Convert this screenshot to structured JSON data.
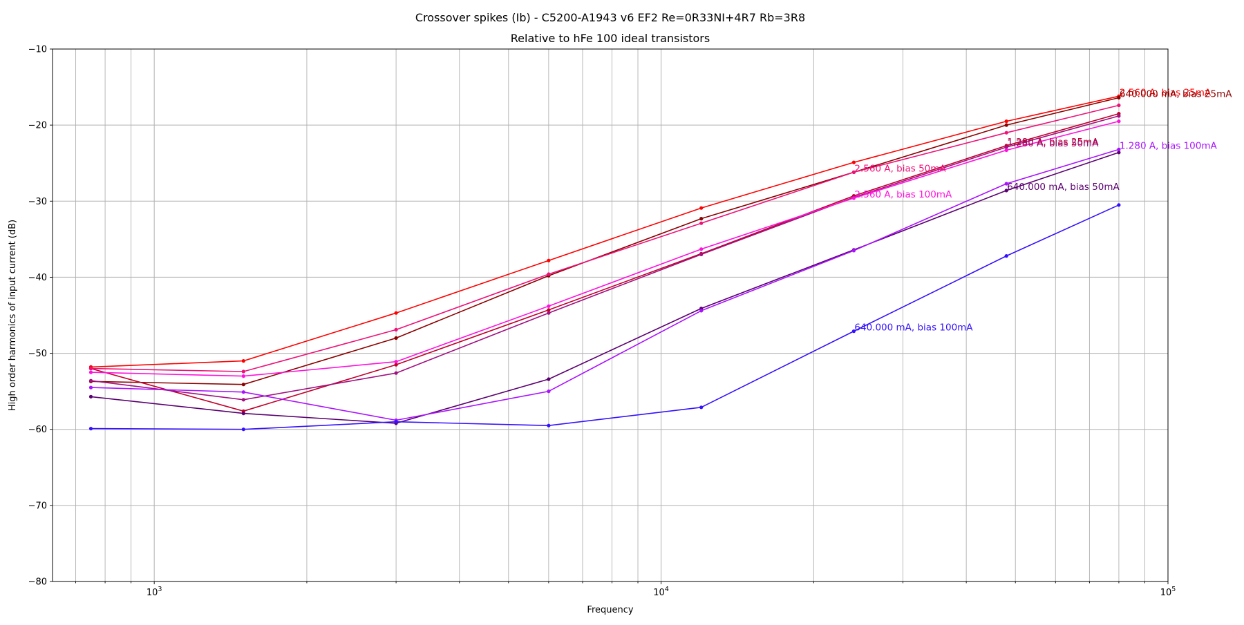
{
  "chart_data": {
    "type": "line",
    "title": "Crossover spikes (Ib) - C5200-A1943 v6 EF2 Re=0R33NI+4R7 Rb=3R8",
    "subtitle": "Relative to hFe 100 ideal transistors",
    "xlabel": "Frequency",
    "ylabel": "High order harmonics of input current (dB)",
    "x_scale": "log",
    "xlim": [
      630,
      100000
    ],
    "ylim": [
      -80,
      -10
    ],
    "grid": true,
    "x_major_tick_labels": [
      {
        "value": 1000,
        "base": "10",
        "exp": "3"
      },
      {
        "value": 10000,
        "base": "10",
        "exp": "4"
      },
      {
        "value": 100000,
        "base": "10",
        "exp": "5"
      }
    ],
    "y_ticks": [
      -80,
      -70,
      -60,
      -50,
      -40,
      -30,
      -20,
      -10
    ],
    "y_tick_labels": [
      "−80",
      "−70",
      "−60",
      "−50",
      "−40",
      "−30",
      "−20",
      "−10"
    ],
    "x": [
      750,
      1500,
      3000,
      6000,
      12000,
      24000,
      48000,
      80000
    ],
    "series": [
      {
        "name": "2.560 A, bias 25mA",
        "color": "#ff0000",
        "values": [
          -51.8,
          -51.0,
          -44.7,
          -37.8,
          -30.9,
          -24.9,
          -19.5,
          -16.2
        ],
        "label_index": 7
      },
      {
        "name": "640.000 mA, bias 25mA",
        "color": "#8b0000",
        "values": [
          -53.7,
          -54.1,
          -48.0,
          -39.8,
          -32.3,
          -26.2,
          -20.0,
          -16.4
        ],
        "label_index": 7
      },
      {
        "name": "1.280 A, bias 25mA",
        "color": "#c0002a",
        "values": [
          -52.0,
          -57.6,
          -51.5,
          -44.3,
          -36.9,
          -29.3,
          -22.7,
          -18.5
        ],
        "label_index": 6
      },
      {
        "name": "2.560 A, bias 50mA",
        "color": "#ee1177",
        "values": [
          -52.0,
          -52.4,
          -46.9,
          -39.6,
          -32.9,
          -26.2,
          -21.0,
          -17.4
        ],
        "label_index": 5
      },
      {
        "name": "1.280 A, bias 50mA",
        "color": "#a01080",
        "values": [
          -53.6,
          -56.1,
          -52.6,
          -44.7,
          -37.0,
          -29.5,
          -22.9,
          -18.8
        ],
        "label_index": 6
      },
      {
        "name": "2.560 A, bias 100mA",
        "color": "#ff11dd",
        "values": [
          -52.5,
          -53.0,
          -51.1,
          -43.8,
          -36.3,
          -29.6,
          -23.3,
          -19.5
        ],
        "label_index": 5
      },
      {
        "name": "640.000 mA, bias 50mA",
        "color": "#5a0070",
        "values": [
          -55.7,
          -57.9,
          -59.2,
          -53.4,
          -44.1,
          -36.4,
          -28.6,
          -23.6
        ],
        "label_index": 6
      },
      {
        "name": "1.280 A, bias 100mA",
        "color": "#aa11ff",
        "values": [
          -54.5,
          -55.1,
          -58.8,
          -55.0,
          -44.4,
          -36.5,
          -27.7,
          -23.2
        ],
        "label_index": 7
      },
      {
        "name": "640.000 mA, bias 100mA",
        "color": "#3311ff",
        "values": [
          -59.9,
          -60.0,
          -59.0,
          -59.5,
          -57.1,
          -47.1,
          -37.2,
          -30.5
        ],
        "label_index": 5
      }
    ]
  }
}
